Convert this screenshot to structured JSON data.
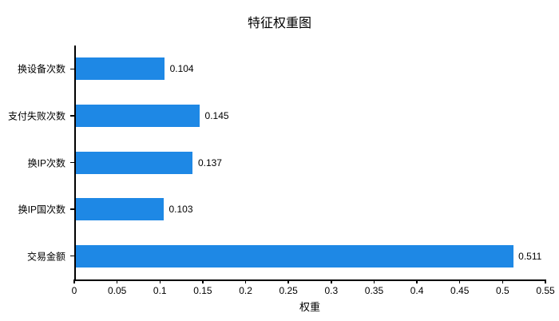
{
  "page": {
    "background": "#ffffff"
  },
  "chart_data": {
    "type": "bar",
    "orientation": "horizontal",
    "title": "特征权重图",
    "categories": [
      "换设备次数",
      "支付失败次数",
      "换IP次数",
      "换IP国次数",
      "交易金额"
    ],
    "values": [
      0.104,
      0.145,
      0.137,
      0.103,
      0.511
    ],
    "value_labels": [
      "0.104",
      "0.145",
      "0.137",
      "0.103",
      "0.511"
    ],
    "xlabel": "权重",
    "ylabel": "",
    "xlim": [
      0,
      0.55
    ],
    "x_ticks": [
      0,
      0.05,
      0.1,
      0.15,
      0.2,
      0.25,
      0.3,
      0.35,
      0.4,
      0.45,
      0.5,
      0.55
    ],
    "x_tick_labels": [
      "0",
      "0.05",
      "0.1",
      "0.15",
      "0.2",
      "0.25",
      "0.3",
      "0.35",
      "0.4",
      "0.45",
      "0.5",
      "0.55"
    ],
    "grid": false,
    "legend": "none",
    "bar_color": "#1E88E5",
    "axis_color": "#000000",
    "text_color": "#000000"
  }
}
